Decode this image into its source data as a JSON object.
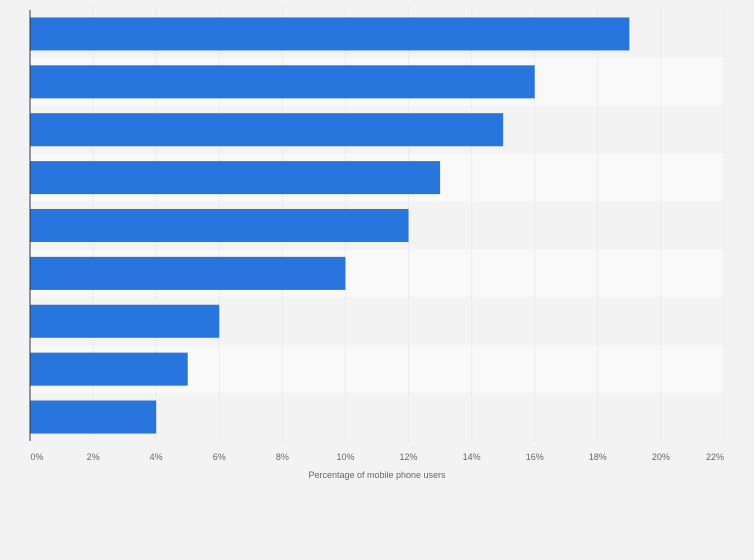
{
  "chart_data": {
    "type": "bar",
    "orientation": "horizontal",
    "title": "",
    "xlabel": "Percentage of mobile phone users",
    "ylabel": "",
    "xlim": [
      0,
      22
    ],
    "x_ticks": [
      "0%",
      "2%",
      "4%",
      "6%",
      "8%",
      "10%",
      "12%",
      "14%",
      "16%",
      "18%",
      "20%",
      "22%"
    ],
    "values": [
      19,
      16,
      15,
      13,
      12,
      10,
      6,
      5,
      4
    ],
    "grid": true,
    "colors": {
      "bar": "#2876dd",
      "background": "#f3f3f3",
      "band_light": "#f9f9f9",
      "band_dark": "#f3f3f3",
      "grid": "#e1e1e1",
      "axis": "#333333"
    }
  }
}
